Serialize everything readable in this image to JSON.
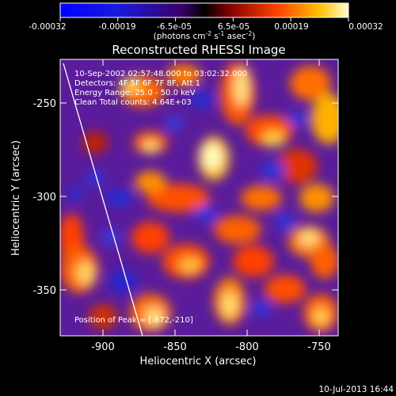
{
  "colorbar": {
    "ticks": [
      "-0.00032",
      "-0.00019",
      "-6.5e-05",
      "6.5e-05",
      "0.00019",
      "0.00032"
    ],
    "units_prefix": "(photons cm",
    "units_exp1": "-2",
    "units_mid": " s",
    "units_exp2": "-1",
    "units_mid2": " asec",
    "units_exp3": "-2",
    "units_suffix": ")"
  },
  "plot": {
    "title": "Reconstructed RHESSI Image",
    "xlabel": "Heliocentric X (arcsec)",
    "ylabel": "Heliocentric Y (arcsec)",
    "xticks": [
      "-900",
      "-850",
      "-800",
      "-750"
    ],
    "yticks": [
      "-250",
      "-300",
      "-350"
    ],
    "info": [
      "10-Sep-2002 02:57:48.000 to 03:02:32.000",
      "Detectors: 4F 5F 6F 7F 8F, Att 1",
      "Energy Range: 25.0 - 50.0 keV",
      "Clean     Total counts: 4.64E+03"
    ],
    "peak": "Position of Peak = [-872,-210]"
  },
  "footer": {
    "date": "10-Jul-2013 16:44"
  },
  "colors": {
    "background": "#000000",
    "text": "#ffffff"
  }
}
